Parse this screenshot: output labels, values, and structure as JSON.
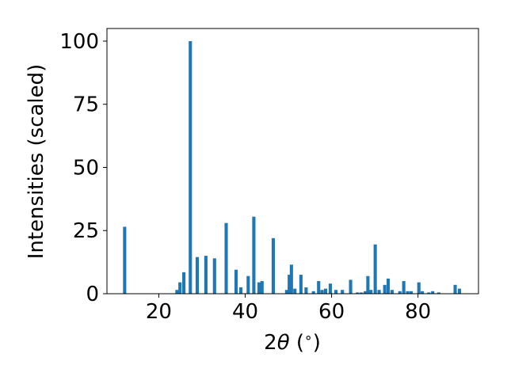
{
  "chart_data": {
    "type": "bar",
    "title": "",
    "xlabel": "2θ (°)",
    "xlabel_parts": {
      "prefix": "2",
      "symbol": "θ",
      "suffix": " (",
      "degree": "∘",
      "close": ")"
    },
    "ylabel": "Intensities (scaled)",
    "xlim": [
      8,
      94
    ],
    "ylim": [
      0,
      105
    ],
    "xticks": [
      20,
      40,
      60,
      80
    ],
    "yticks": [
      0,
      25,
      50,
      75,
      100
    ],
    "grid": false,
    "bar_color": "#1f77b4",
    "bar_width": 0.75,
    "x": [
      12.1,
      24.2,
      24.9,
      25.8,
      27.3,
      28.9,
      30.9,
      32.9,
      35.6,
      37.9,
      39.0,
      40.7,
      42.0,
      43.2,
      43.9,
      46.5,
      49.6,
      50.2,
      50.7,
      51.5,
      52.9,
      54.1,
      55.8,
      57.0,
      57.8,
      58.6,
      59.7,
      61.0,
      62.5,
      64.4,
      66.0,
      66.9,
      67.8,
      68.4,
      69.1,
      70.1,
      71.0,
      72.3,
      73.1,
      74.0,
      75.8,
      76.7,
      77.6,
      78.4,
      80.2,
      81.0,
      82.5,
      83.4,
      84.8,
      88.6,
      89.6
    ],
    "values": [
      26.5,
      1.5,
      4.5,
      8.5,
      100,
      14.5,
      15,
      14,
      28,
      9.5,
      2.5,
      7,
      30.5,
      4.5,
      5,
      22,
      1.5,
      7.5,
      11.5,
      2,
      7.5,
      2.5,
      1,
      5,
      1.5,
      2,
      4,
      1.5,
      1.5,
      5.5,
      0.5,
      0.5,
      1,
      7,
      1.5,
      19.5,
      1.5,
      3.5,
      6,
      1.5,
      1,
      5,
      1,
      1,
      4.5,
      1,
      0.5,
      1,
      0.5,
      3.5,
      2
    ]
  }
}
